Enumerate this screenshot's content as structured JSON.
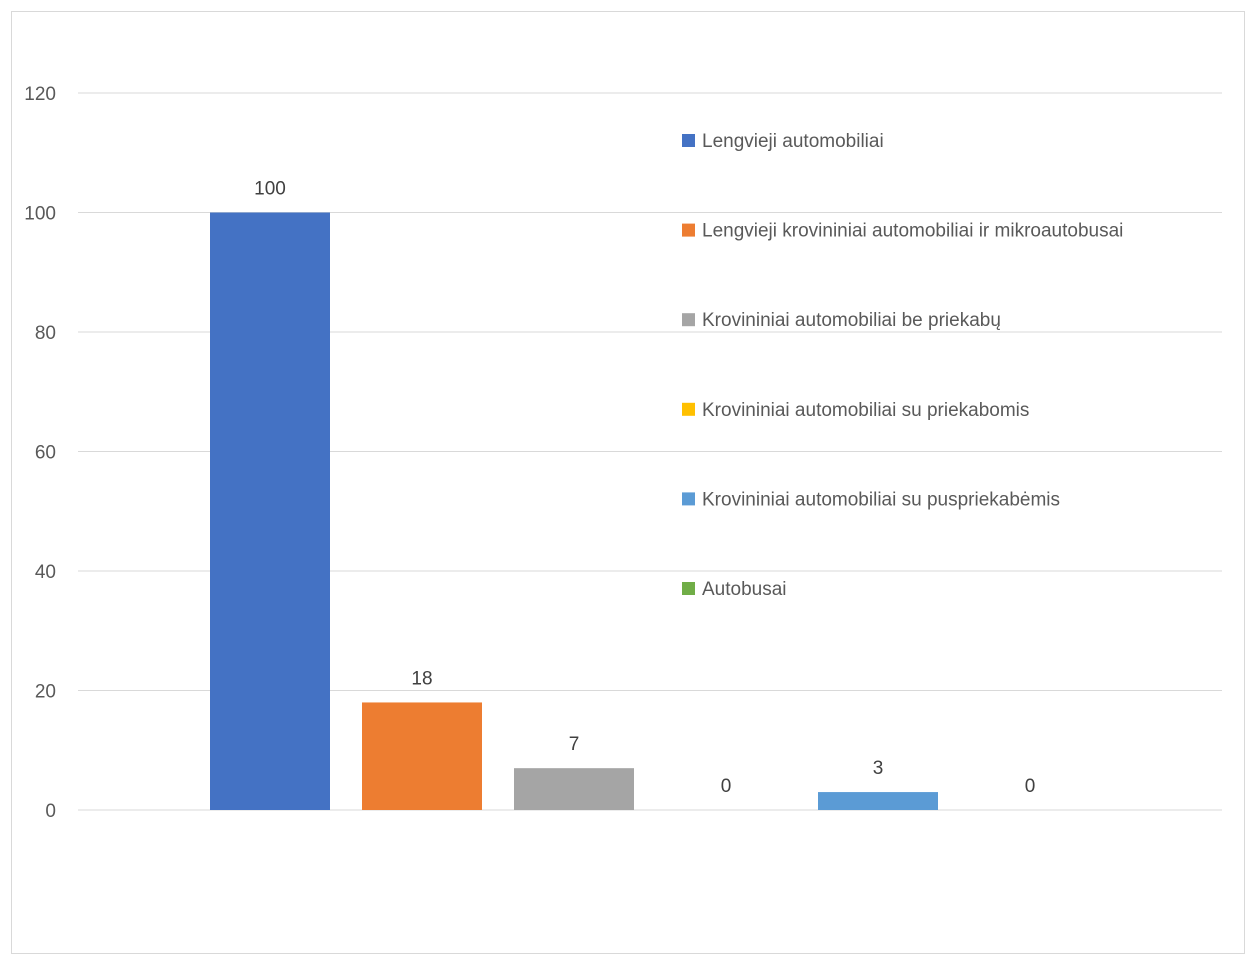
{
  "chart_data": {
    "type": "bar",
    "title": "",
    "xlabel": "",
    "ylabel": "",
    "ylim": [
      0,
      120
    ],
    "y_ticks": [
      0,
      20,
      40,
      60,
      80,
      100,
      120
    ],
    "grid": true,
    "legend_position": "right",
    "categories": [
      "Lengvieji automobiliai",
      "Lengvieji krovininiai automobiliai ir mikroautobusai",
      "Krovininiai automobiliai be priekabų",
      "Krovininiai automobiliai su priekabomis",
      "Krovininiai automobiliai su puspriekabėmis",
      "Autobusai"
    ],
    "values": [
      100,
      18,
      7,
      0,
      3,
      0
    ],
    "colors": [
      "#4472C4",
      "#ED7D31",
      "#A5A5A5",
      "#FFC000",
      "#5B9BD5",
      "#70AD47"
    ]
  },
  "colors": {
    "gridline": "#d9d9d9",
    "tick_text": "#595959",
    "data_label_text": "#404040",
    "frame_border": "#d9d9d9"
  }
}
